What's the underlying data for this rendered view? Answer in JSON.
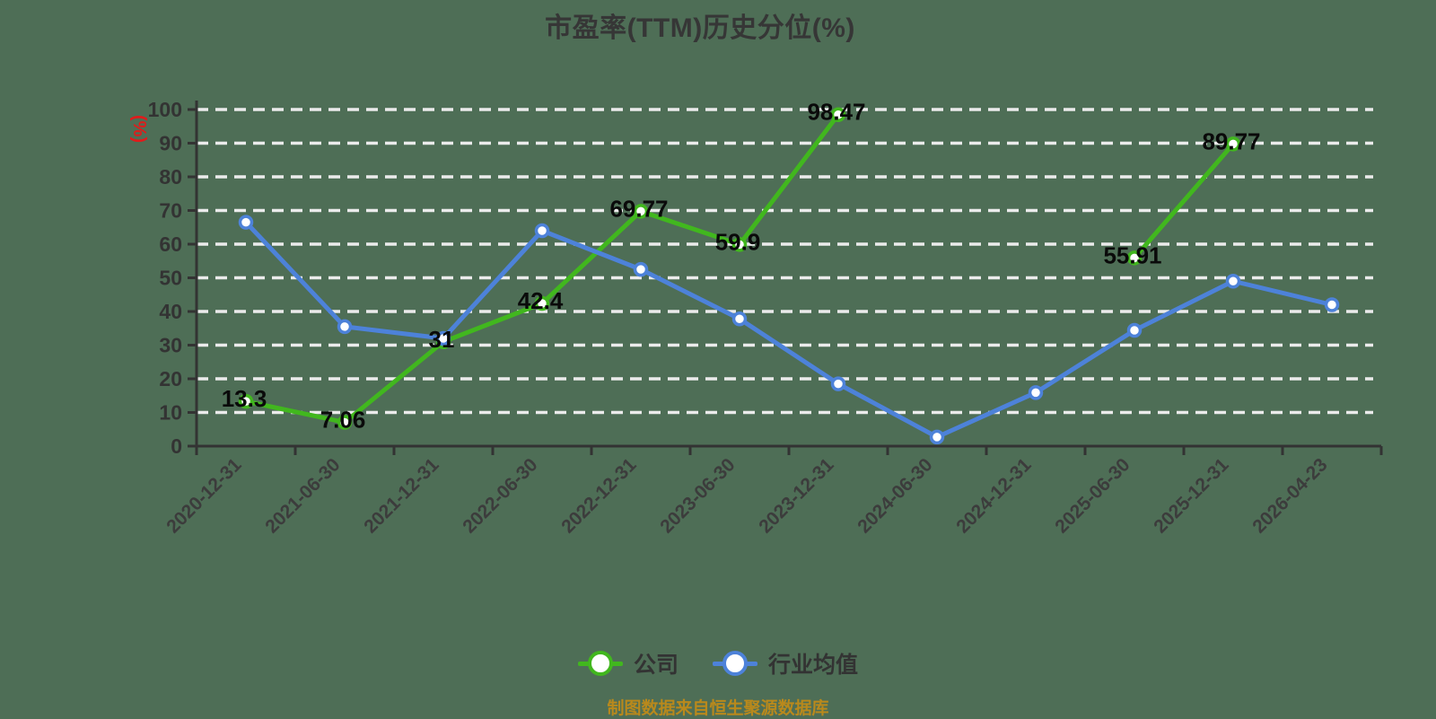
{
  "page": {
    "background": "#4e6e56"
  },
  "title": {
    "text": "市盈率(TTM)历史分位(%)",
    "color": "#363636"
  },
  "y_axis": {
    "unit_label": "(%)",
    "unit_color": "#e01b1b",
    "ticks": [
      0,
      10,
      20,
      30,
      40,
      50,
      60,
      70,
      80,
      90,
      100
    ],
    "tick_color": "#333333"
  },
  "x_axis": {
    "labels": [
      "2020-12-31",
      "2021-06-30",
      "2021-12-31",
      "2022-06-30",
      "2022-12-31",
      "2023-06-30",
      "2023-12-31",
      "2024-06-30",
      "2024-12-31",
      "2025-06-30",
      "2025-12-31",
      "2026-04-23"
    ],
    "tick_color": "#3c3c3c"
  },
  "legend": {
    "items": [
      {
        "label": "公司",
        "color": "#41b71e"
      },
      {
        "label": "行业均值",
        "color": "#4d82d9"
      }
    ]
  },
  "footer": {
    "text": "制图数据来自恒生聚源数据库",
    "color": "#b9891c"
  },
  "chart_data": {
    "type": "line",
    "title": "市盈率(TTM)历史分位(%)",
    "categories": [
      "2020-12-31",
      "2021-06-30",
      "2021-12-31",
      "2022-06-30",
      "2022-12-31",
      "2023-06-30",
      "2023-12-31",
      "2024-06-30",
      "2024-12-31",
      "2025-06-30",
      "2025-12-31",
      "2026-04-23"
    ],
    "series": [
      {
        "name": "公司",
        "color": "#41b71e",
        "values": [
          13.3,
          7.06,
          31,
          42.4,
          69.77,
          59.9,
          98.47,
          null,
          null,
          55.91,
          89.77,
          null
        ],
        "data_labels_shown": [
          "13.3",
          "7.06",
          "31",
          "42.4",
          "69.77",
          "59.9",
          "98.47",
          "",
          "",
          "55.91",
          "89.77",
          ""
        ]
      },
      {
        "name": "行业均值",
        "color": "#4d82d9",
        "values": [
          66.5,
          35.5,
          32,
          64,
          52.5,
          37.8,
          18.5,
          2.7,
          15.9,
          34.4,
          49,
          42
        ],
        "data_labels_shown": null
      }
    ],
    "ylabel": "(%)",
    "ylim": [
      0,
      100
    ],
    "y_tick_step": 10,
    "grid": "horizontal-dashed",
    "grid_color": "#ebebeb",
    "axis_color": "#333333",
    "marker": "circle-white-fill",
    "legend_position": "bottom"
  }
}
